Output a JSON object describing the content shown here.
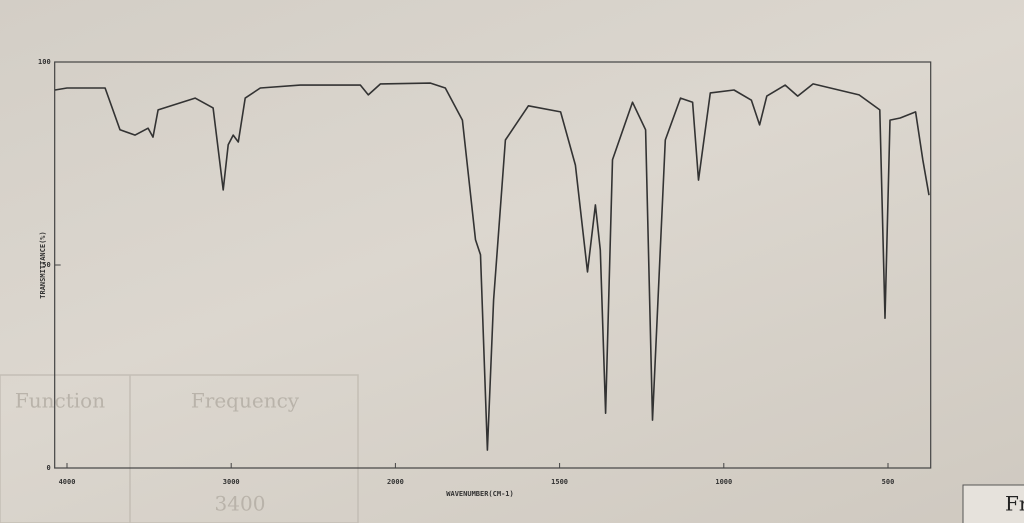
{
  "chart_data": {
    "type": "line",
    "y_label": "TRANSMITTANCE(%)",
    "x_label": "WAVENUMBER(CM-1)",
    "x": [
      4073,
      4000,
      3768,
      3677,
      3585,
      3506,
      3476,
      3445,
      3220,
      3110,
      3049,
      3018,
      2988,
      2957,
      2915,
      2823,
      2579,
      2213,
      2165,
      2091,
      1893,
      1848,
      1796,
      1756,
      1741,
      1720,
      1701,
      1665,
      1595,
      1497,
      1452,
      1415,
      1391,
      1376,
      1360,
      1339,
      1278,
      1238,
      1217,
      1178,
      1132,
      1095,
      1077,
      1041,
      969,
      916,
      891,
      869,
      813,
      775,
      728,
      588,
      525,
      509,
      494,
      463,
      416,
      394,
      375
    ],
    "values": [
      93.1,
      93.6,
      93.6,
      83.3,
      82,
      83.7,
      81.5,
      88.2,
      91.1,
      88.7,
      68.5,
      79.6,
      82,
      80.3,
      91.1,
      93.6,
      94.3,
      94.3,
      91.9,
      94.6,
      94.8,
      93.6,
      85.7,
      56.2,
      52.5,
      4.4,
      41.4,
      80.8,
      89.2,
      87.7,
      74.6,
      48.3,
      64.8,
      53.7,
      13.5,
      75.9,
      90.1,
      83.3,
      11.8,
      80.8,
      91.1,
      90.1,
      70.9,
      92.4,
      93.1,
      90.6,
      84.5,
      91.6,
      94.3,
      91.6,
      94.6,
      91.9,
      88.2,
      36.9,
      85.7,
      86.2,
      87.7,
      75.9,
      67.2
    ],
    "color": "#333333",
    "xlim": [
      4075,
      370
    ],
    "xticks": [
      4000,
      3000,
      2000,
      1500,
      1000,
      500
    ],
    "ylim": [
      0,
      100
    ],
    "yticks": [
      0,
      50,
      100
    ]
  },
  "background_text": [
    "Frequency",
    "Function",
    "3400",
    "Fr"
  ]
}
